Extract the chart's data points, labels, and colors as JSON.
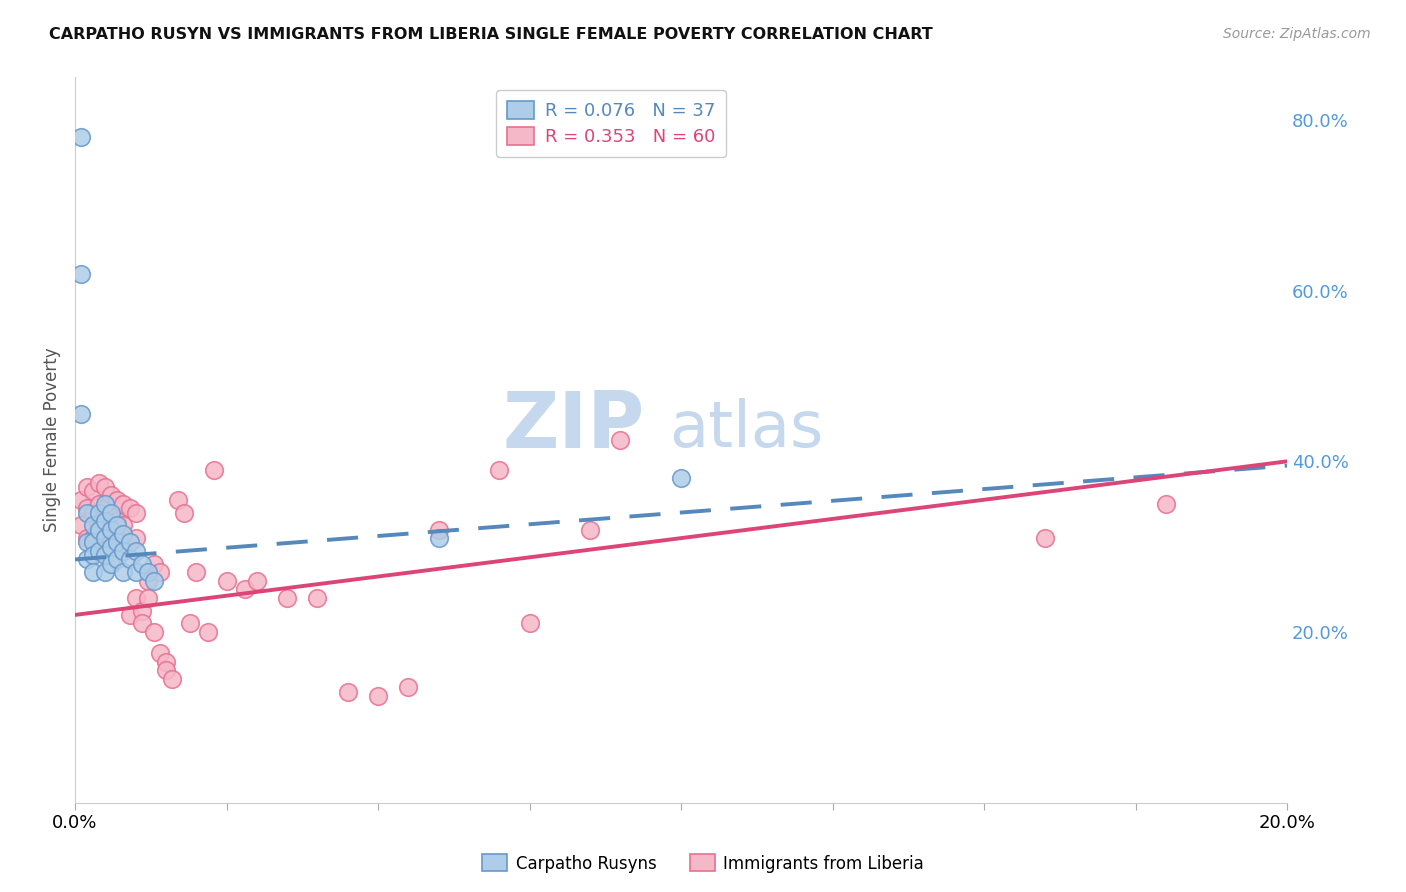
{
  "title": "CARPATHO RUSYN VS IMMIGRANTS FROM LIBERIA SINGLE FEMALE POVERTY CORRELATION CHART",
  "source": "Source: ZipAtlas.com",
  "ylabel": "Single Female Poverty",
  "xlim": [
    0.0,
    0.2
  ],
  "ylim": [
    0.0,
    0.85
  ],
  "right_yticks": [
    0.2,
    0.4,
    0.6,
    0.8
  ],
  "right_yticklabels": [
    "20.0%",
    "40.0%",
    "60.0%",
    "80.0%"
  ],
  "xticks": [
    0.0,
    0.025,
    0.05,
    0.075,
    0.1,
    0.125,
    0.15,
    0.175,
    0.2
  ],
  "xticklabels": [
    "0.0%",
    "",
    "",
    "",
    "",
    "",
    "",
    "",
    "20.0%"
  ],
  "legend_text_blue": "R = 0.076   N = 37",
  "legend_text_pink": "R = 0.353   N = 60",
  "legend_labels": [
    "Carpatho Rusyns",
    "Immigrants from Liberia"
  ],
  "blue_fill": "#aecde8",
  "pink_fill": "#f5b8c8",
  "blue_edge": "#6699cc",
  "pink_edge": "#e87090",
  "blue_line": "#5588bb",
  "pink_line": "#dd4477",
  "right_axis_color": "#5599dd",
  "watermark_zip_color": "#c5d8ed",
  "watermark_atlas_color": "#c5d8ed",
  "grid_color": "#dddddd",
  "blue_scatter_x": [
    0.001,
    0.001,
    0.002,
    0.002,
    0.002,
    0.003,
    0.003,
    0.003,
    0.003,
    0.004,
    0.004,
    0.004,
    0.005,
    0.005,
    0.005,
    0.005,
    0.005,
    0.006,
    0.006,
    0.006,
    0.006,
    0.007,
    0.007,
    0.007,
    0.008,
    0.008,
    0.008,
    0.009,
    0.009,
    0.01,
    0.01,
    0.011,
    0.012,
    0.013,
    0.06,
    0.1,
    0.001
  ],
  "blue_scatter_y": [
    0.78,
    0.455,
    0.34,
    0.305,
    0.285,
    0.325,
    0.305,
    0.29,
    0.27,
    0.34,
    0.32,
    0.295,
    0.35,
    0.33,
    0.31,
    0.29,
    0.27,
    0.34,
    0.32,
    0.3,
    0.28,
    0.325,
    0.305,
    0.285,
    0.315,
    0.295,
    0.27,
    0.305,
    0.285,
    0.295,
    0.27,
    0.28,
    0.27,
    0.26,
    0.31,
    0.38,
    0.62
  ],
  "pink_scatter_x": [
    0.001,
    0.001,
    0.002,
    0.002,
    0.002,
    0.003,
    0.003,
    0.003,
    0.004,
    0.004,
    0.004,
    0.005,
    0.005,
    0.005,
    0.006,
    0.006,
    0.006,
    0.007,
    0.007,
    0.007,
    0.008,
    0.008,
    0.008,
    0.009,
    0.009,
    0.01,
    0.01,
    0.01,
    0.011,
    0.011,
    0.012,
    0.012,
    0.013,
    0.013,
    0.014,
    0.014,
    0.015,
    0.015,
    0.016,
    0.017,
    0.018,
    0.019,
    0.02,
    0.022,
    0.023,
    0.025,
    0.028,
    0.03,
    0.035,
    0.04,
    0.045,
    0.05,
    0.055,
    0.06,
    0.07,
    0.075,
    0.085,
    0.09,
    0.16,
    0.18
  ],
  "pink_scatter_y": [
    0.355,
    0.325,
    0.37,
    0.345,
    0.31,
    0.365,
    0.34,
    0.31,
    0.375,
    0.35,
    0.32,
    0.37,
    0.345,
    0.315,
    0.36,
    0.335,
    0.305,
    0.355,
    0.33,
    0.3,
    0.35,
    0.325,
    0.295,
    0.345,
    0.22,
    0.34,
    0.31,
    0.24,
    0.225,
    0.21,
    0.26,
    0.24,
    0.28,
    0.2,
    0.27,
    0.175,
    0.165,
    0.155,
    0.145,
    0.355,
    0.34,
    0.21,
    0.27,
    0.2,
    0.39,
    0.26,
    0.25,
    0.26,
    0.24,
    0.24,
    0.13,
    0.125,
    0.135,
    0.32,
    0.39,
    0.21,
    0.32,
    0.425,
    0.31,
    0.35
  ],
  "blue_trend_x": [
    0.0,
    0.2
  ],
  "blue_trend_y": [
    0.285,
    0.395
  ],
  "pink_trend_x": [
    0.0,
    0.2
  ],
  "pink_trend_y": [
    0.22,
    0.4
  ]
}
